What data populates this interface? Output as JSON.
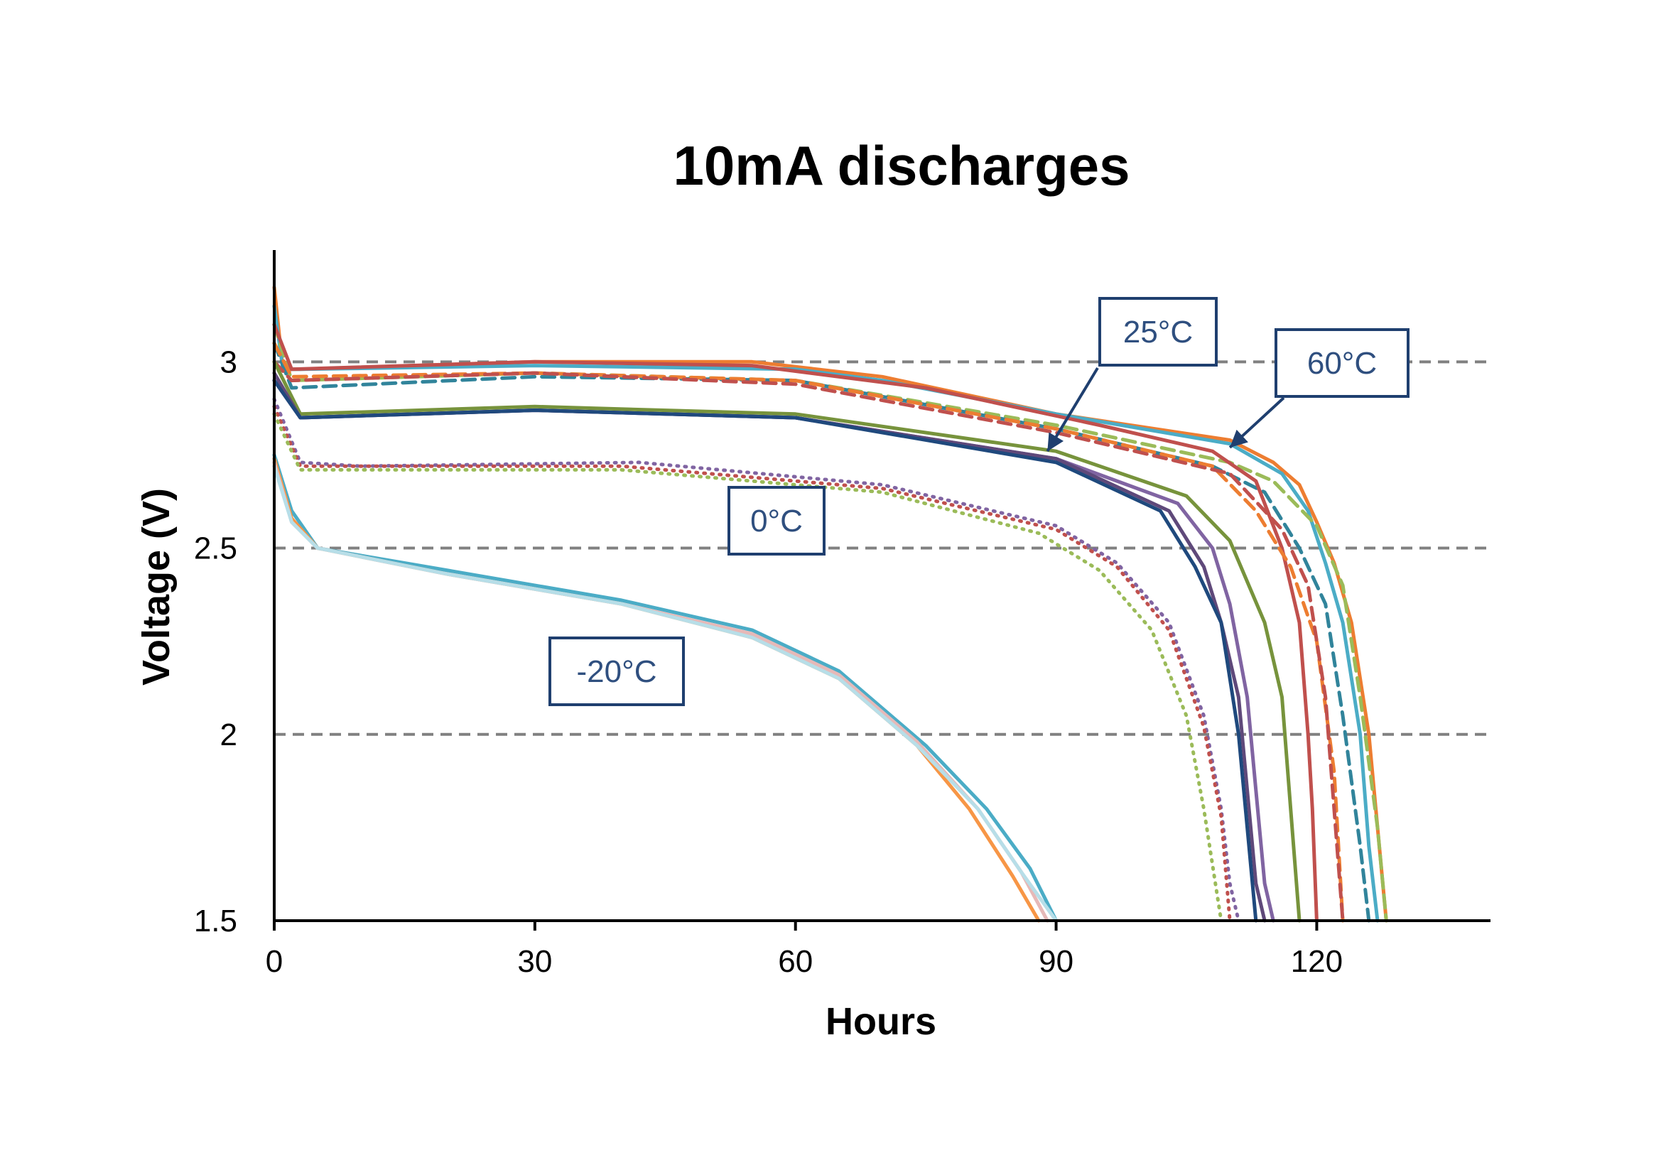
{
  "chart_data": {
    "type": "line",
    "title": "10mA discharges",
    "xlabel": "Hours",
    "ylabel": "Voltage (V)",
    "xlim": [
      0,
      140
    ],
    "ylim": [
      1.5,
      3.3
    ],
    "xticks": [
      "0",
      "30",
      "60",
      "90",
      "120"
    ],
    "yticks": [
      "1.5",
      "2",
      "2.5",
      "3"
    ],
    "grid": "horizontal dashed at 2, 2.5, 3",
    "annotations": [
      {
        "text": "25°C",
        "arrow_to": [
          89,
          2.76
        ]
      },
      {
        "text": "60°C",
        "arrow_to": [
          110,
          2.77
        ]
      },
      {
        "text": "0°C"
      },
      {
        "text": "-20°C"
      }
    ],
    "series": [
      {
        "group": "60°C",
        "color": "#ed7d31",
        "dash": "solid",
        "points": [
          [
            0,
            3.2
          ],
          [
            1,
            2.98
          ],
          [
            3,
            2.98
          ],
          [
            30,
            3.0
          ],
          [
            55,
            3.0
          ],
          [
            70,
            2.96
          ],
          [
            90,
            2.86
          ],
          [
            110,
            2.79
          ],
          [
            115,
            2.73
          ],
          [
            118,
            2.67
          ],
          [
            120,
            2.57
          ],
          [
            122,
            2.46
          ],
          [
            124,
            2.3
          ],
          [
            126,
            2.0
          ],
          [
            127,
            1.75
          ],
          [
            128,
            1.5
          ]
        ]
      },
      {
        "group": "60°C",
        "color": "#4bacc6",
        "dash": "solid",
        "points": [
          [
            0,
            3.15
          ],
          [
            1,
            2.98
          ],
          [
            3,
            2.98
          ],
          [
            30,
            2.99
          ],
          [
            60,
            2.98
          ],
          [
            70,
            2.95
          ],
          [
            90,
            2.86
          ],
          [
            110,
            2.78
          ],
          [
            116,
            2.7
          ],
          [
            119,
            2.6
          ],
          [
            121,
            2.46
          ],
          [
            123,
            2.3
          ],
          [
            125,
            2.0
          ],
          [
            126,
            1.7
          ],
          [
            127,
            1.5
          ]
        ]
      },
      {
        "group": "60°C",
        "color": "#9bbb59",
        "dash": "dashed",
        "points": [
          [
            0,
            3.1
          ],
          [
            2,
            2.95
          ],
          [
            30,
            2.97
          ],
          [
            60,
            2.95
          ],
          [
            90,
            2.83
          ],
          [
            110,
            2.73
          ],
          [
            115,
            2.68
          ],
          [
            120,
            2.56
          ],
          [
            123,
            2.4
          ],
          [
            125,
            2.1
          ],
          [
            127,
            1.75
          ],
          [
            128,
            1.5
          ]
        ]
      },
      {
        "group": "60°C",
        "color": "#31849b",
        "dash": "dashed",
        "points": [
          [
            0,
            3.05
          ],
          [
            2,
            2.93
          ],
          [
            30,
            2.96
          ],
          [
            60,
            2.95
          ],
          [
            90,
            2.82
          ],
          [
            108,
            2.72
          ],
          [
            114,
            2.65
          ],
          [
            118,
            2.5
          ],
          [
            121,
            2.35
          ],
          [
            123,
            2.05
          ],
          [
            125,
            1.7
          ],
          [
            126,
            1.5
          ]
        ]
      },
      {
        "group": "25°C",
        "color": "#c0504d",
        "dash": "solid",
        "points": [
          [
            0,
            3.1
          ],
          [
            2,
            2.98
          ],
          [
            30,
            3.0
          ],
          [
            55,
            2.99
          ],
          [
            75,
            2.93
          ],
          [
            95,
            2.83
          ],
          [
            108,
            2.76
          ],
          [
            113,
            2.68
          ],
          [
            116,
            2.5
          ],
          [
            118,
            2.3
          ],
          [
            119,
            2.0
          ],
          [
            119.5,
            1.8
          ],
          [
            120,
            1.5
          ]
        ]
      },
      {
        "group": "25°C",
        "color": "#ed7d31",
        "dash": "dashed",
        "points": [
          [
            0,
            3.05
          ],
          [
            2,
            2.96
          ],
          [
            30,
            2.97
          ],
          [
            60,
            2.95
          ],
          [
            90,
            2.82
          ],
          [
            108,
            2.72
          ],
          [
            113,
            2.6
          ],
          [
            117,
            2.45
          ],
          [
            120,
            2.25
          ],
          [
            122,
            1.9
          ],
          [
            123,
            1.5
          ]
        ]
      },
      {
        "group": "25°C",
        "color": "#c0504d",
        "dash": "dashed",
        "points": [
          [
            0,
            3.0
          ],
          [
            2,
            2.95
          ],
          [
            30,
            2.97
          ],
          [
            60,
            2.94
          ],
          [
            90,
            2.81
          ],
          [
            110,
            2.7
          ],
          [
            116,
            2.55
          ],
          [
            119,
            2.4
          ],
          [
            121,
            2.1
          ],
          [
            122,
            1.8
          ],
          [
            123,
            1.5
          ]
        ]
      },
      {
        "group": "0°C",
        "color": "#77933c",
        "dash": "solid",
        "points": [
          [
            0,
            3.0
          ],
          [
            3,
            2.86
          ],
          [
            30,
            2.88
          ],
          [
            60,
            2.86
          ],
          [
            90,
            2.76
          ],
          [
            105,
            2.64
          ],
          [
            110,
            2.52
          ],
          [
            114,
            2.3
          ],
          [
            116,
            2.1
          ],
          [
            117,
            1.8
          ],
          [
            118,
            1.5
          ]
        ]
      },
      {
        "group": "0°C",
        "color": "#8064a2",
        "dash": "solid",
        "points": [
          [
            0,
            2.95
          ],
          [
            3,
            2.85
          ],
          [
            30,
            2.87
          ],
          [
            60,
            2.85
          ],
          [
            90,
            2.74
          ],
          [
            104,
            2.62
          ],
          [
            108,
            2.5
          ],
          [
            110,
            2.35
          ],
          [
            112,
            2.1
          ],
          [
            113,
            1.85
          ],
          [
            114,
            1.6
          ],
          [
            115,
            1.5
          ]
        ]
      },
      {
        "group": "0°C",
        "color": "#5f497a",
        "dash": "solid",
        "points": [
          [
            0,
            2.97
          ],
          [
            3,
            2.85
          ],
          [
            30,
            2.87
          ],
          [
            60,
            2.85
          ],
          [
            90,
            2.74
          ],
          [
            103,
            2.6
          ],
          [
            107,
            2.45
          ],
          [
            109,
            2.3
          ],
          [
            111,
            2.1
          ],
          [
            112,
            1.85
          ],
          [
            113,
            1.6
          ],
          [
            114,
            1.5
          ]
        ]
      },
      {
        "group": "0°C",
        "color": "#1f497d",
        "dash": "solid",
        "points": [
          [
            0,
            2.95
          ],
          [
            3,
            2.85
          ],
          [
            30,
            2.87
          ],
          [
            60,
            2.85
          ],
          [
            90,
            2.73
          ],
          [
            102,
            2.6
          ],
          [
            106,
            2.45
          ],
          [
            109,
            2.3
          ],
          [
            111,
            2.0
          ],
          [
            112,
            1.75
          ],
          [
            113,
            1.5
          ]
        ]
      },
      {
        "group": "-20°C",
        "color": "#8064a2",
        "dash": "dotted",
        "points": [
          [
            0,
            2.9
          ],
          [
            3,
            2.73
          ],
          [
            10,
            2.72
          ],
          [
            42,
            2.73
          ],
          [
            70,
            2.67
          ],
          [
            90,
            2.56
          ],
          [
            97,
            2.46
          ],
          [
            103,
            2.3
          ],
          [
            107,
            2.05
          ],
          [
            109,
            1.8
          ],
          [
            110,
            1.6
          ],
          [
            111,
            1.5
          ]
        ]
      },
      {
        "group": "-20°C",
        "color": "#c0504d",
        "dash": "dotted",
        "points": [
          [
            0,
            2.88
          ],
          [
            3,
            2.72
          ],
          [
            10,
            2.72
          ],
          [
            40,
            2.72
          ],
          [
            70,
            2.66
          ],
          [
            90,
            2.55
          ],
          [
            97,
            2.45
          ],
          [
            103,
            2.28
          ],
          [
            107,
            2.02
          ],
          [
            109,
            1.78
          ],
          [
            110,
            1.5
          ]
        ]
      },
      {
        "group": "-20°C",
        "color": "#9bbb59",
        "dash": "dotted",
        "points": [
          [
            0,
            2.86
          ],
          [
            3,
            2.71
          ],
          [
            10,
            2.71
          ],
          [
            40,
            2.71
          ],
          [
            70,
            2.65
          ],
          [
            88,
            2.54
          ],
          [
            95,
            2.44
          ],
          [
            101,
            2.28
          ],
          [
            105,
            2.05
          ],
          [
            107,
            1.8
          ],
          [
            109,
            1.5
          ]
        ]
      },
      {
        "group": "-20°C",
        "color": "#4bacc6",
        "dash": "solid",
        "points": [
          [
            0,
            2.75
          ],
          [
            2,
            2.6
          ],
          [
            5,
            2.5
          ],
          [
            20,
            2.44
          ],
          [
            40,
            2.36
          ],
          [
            55,
            2.28
          ],
          [
            65,
            2.17
          ],
          [
            75,
            1.97
          ],
          [
            82,
            1.8
          ],
          [
            87,
            1.64
          ],
          [
            90,
            1.5
          ]
        ]
      },
      {
        "group": "-20°C",
        "color": "#f79646",
        "dash": "solid",
        "points": [
          [
            0,
            2.74
          ],
          [
            2,
            2.58
          ],
          [
            5,
            2.5
          ],
          [
            20,
            2.43
          ],
          [
            40,
            2.35
          ],
          [
            55,
            2.26
          ],
          [
            65,
            2.15
          ],
          [
            74,
            1.97
          ],
          [
            80,
            1.8
          ],
          [
            85,
            1.62
          ],
          [
            88,
            1.5
          ]
        ]
      },
      {
        "group": "-20°C",
        "color": "#e6b9b8",
        "dash": "solid",
        "points": [
          [
            0,
            2.73
          ],
          [
            2,
            2.57
          ],
          [
            5,
            2.5
          ],
          [
            20,
            2.43
          ],
          [
            40,
            2.35
          ],
          [
            55,
            2.27
          ],
          [
            65,
            2.16
          ],
          [
            74,
            1.98
          ],
          [
            81,
            1.8
          ],
          [
            86,
            1.63
          ],
          [
            89,
            1.5
          ]
        ]
      },
      {
        "group": "-20°C",
        "color": "#b7dee8",
        "dash": "solid",
        "points": [
          [
            0,
            2.72
          ],
          [
            2,
            2.57
          ],
          [
            5,
            2.5
          ],
          [
            20,
            2.43
          ],
          [
            40,
            2.35
          ],
          [
            55,
            2.26
          ],
          [
            65,
            2.15
          ],
          [
            74,
            1.97
          ],
          [
            81,
            1.8
          ],
          [
            86,
            1.63
          ],
          [
            90,
            1.5
          ]
        ]
      }
    ]
  }
}
